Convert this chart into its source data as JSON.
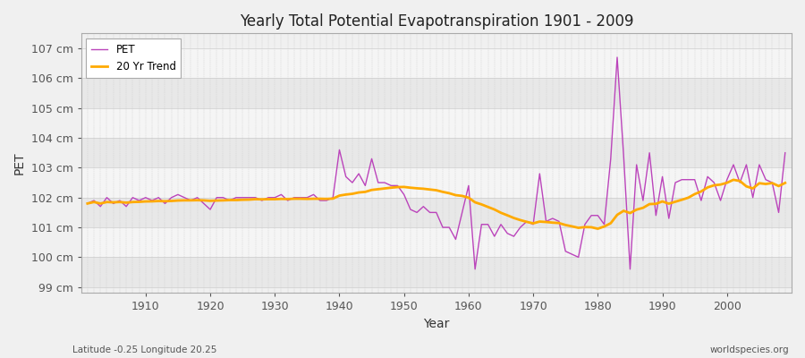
{
  "title": "Yearly Total Potential Evapotranspiration 1901 - 2009",
  "xlabel": "Year",
  "ylabel": "PET",
  "subtitle_left": "Latitude -0.25 Longitude 20.25",
  "subtitle_right": "worldspecies.org",
  "pet_color": "#bb44bb",
  "trend_color": "#ffaa00",
  "background_color": "#f0f0f0",
  "plot_bg_color": "#f0f0f0",
  "ylim": [
    98.8,
    107.5
  ],
  "yticks": [
    99,
    100,
    101,
    102,
    103,
    104,
    105,
    106,
    107
  ],
  "years": [
    1901,
    1902,
    1903,
    1904,
    1905,
    1906,
    1907,
    1908,
    1909,
    1910,
    1911,
    1912,
    1913,
    1914,
    1915,
    1916,
    1917,
    1918,
    1919,
    1920,
    1921,
    1922,
    1923,
    1924,
    1925,
    1926,
    1927,
    1928,
    1929,
    1930,
    1931,
    1932,
    1933,
    1934,
    1935,
    1936,
    1937,
    1938,
    1939,
    1940,
    1941,
    1942,
    1943,
    1944,
    1945,
    1946,
    1947,
    1948,
    1949,
    1950,
    1951,
    1952,
    1953,
    1954,
    1955,
    1956,
    1957,
    1958,
    1959,
    1960,
    1961,
    1962,
    1963,
    1964,
    1965,
    1966,
    1967,
    1968,
    1969,
    1970,
    1971,
    1972,
    1973,
    1974,
    1975,
    1976,
    1977,
    1978,
    1979,
    1980,
    1981,
    1982,
    1983,
    1984,
    1985,
    1986,
    1987,
    1988,
    1989,
    1990,
    1991,
    1992,
    1993,
    1994,
    1995,
    1996,
    1997,
    1998,
    1999,
    2000,
    2001,
    2002,
    2003,
    2004,
    2005,
    2006,
    2007,
    2008,
    2009
  ],
  "pet_values": [
    101.8,
    101.9,
    101.7,
    102.0,
    101.8,
    101.9,
    101.7,
    102.0,
    101.9,
    102.0,
    101.9,
    102.0,
    101.8,
    102.0,
    102.1,
    102.0,
    101.9,
    102.0,
    101.8,
    101.6,
    102.0,
    102.0,
    101.9,
    102.0,
    102.0,
    102.0,
    102.0,
    101.9,
    102.0,
    102.0,
    102.1,
    101.9,
    102.0,
    102.0,
    102.0,
    102.1,
    101.9,
    101.9,
    102.0,
    103.6,
    102.7,
    102.5,
    102.8,
    102.4,
    103.3,
    102.5,
    102.5,
    102.4,
    102.4,
    102.1,
    101.6,
    101.5,
    101.7,
    101.5,
    101.5,
    101.0,
    101.0,
    100.6,
    101.5,
    102.4,
    99.6,
    101.1,
    101.1,
    100.7,
    101.1,
    100.8,
    100.7,
    101.0,
    101.2,
    101.1,
    102.8,
    101.2,
    101.3,
    101.2,
    100.2,
    100.1,
    100.0,
    101.1,
    101.4,
    101.4,
    101.1,
    103.3,
    106.7,
    103.4,
    99.6,
    103.1,
    101.9,
    103.5,
    101.4,
    102.7,
    101.3,
    102.5,
    102.6,
    102.6,
    102.6,
    101.9,
    102.7,
    102.5,
    101.9,
    102.6,
    103.1,
    102.5,
    103.1,
    102.0,
    103.1,
    102.6,
    102.5,
    101.5,
    103.5
  ]
}
